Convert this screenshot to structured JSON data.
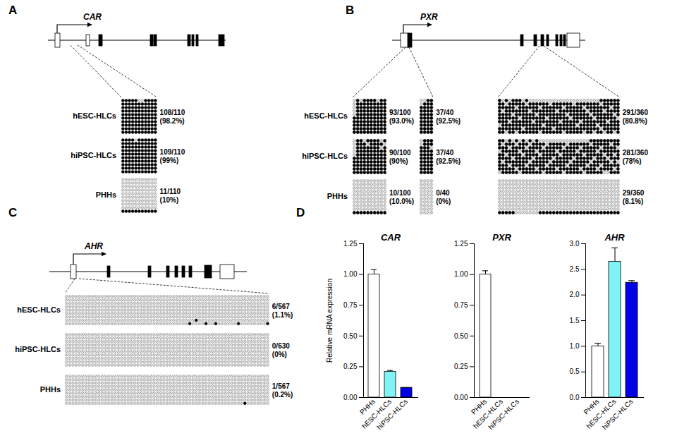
{
  "panels": [
    {
      "letter": "A",
      "gene": "CAR",
      "row_labels": [
        "hESC-HLCs",
        "hiPSC-HLCs",
        "PHHs"
      ],
      "regions": [
        {
          "cpgs": 11,
          "samples": [
            {
              "unmethylated_by_row": [
                [
                  5,
                  6
                ],
                [],
                [],
                [],
                [],
                [],
                [],
                [],
                [],
                []
              ],
              "count_label": "108/110",
              "percent_label": "(98.2%)"
            },
            {
              "unmethylated_by_row": [
                [
                  4
                ],
                [],
                [],
                [],
                [],
                [],
                [],
                [],
                [],
                []
              ],
              "count_label": "109/110",
              "percent_label": "(99%)"
            },
            {
              "methylated_by_row": [
                [],
                [],
                [],
                [],
                [],
                [],
                [],
                [],
                [],
                [
                  0,
                  1,
                  2,
                  3,
                  4,
                  5,
                  6,
                  7,
                  8,
                  9,
                  10
                ]
              ],
              "count_label": "11/110",
              "percent_label": "(10%)"
            }
          ]
        }
      ]
    },
    {
      "letter": "B",
      "gene": "PXR",
      "row_labels": [
        "hESC-HLCs",
        "hiPSC-HLCs",
        "PHHs"
      ],
      "regions": [
        {
          "cpgs": 10,
          "samples": [
            {
              "unmethylated_by_row": [
                [
                  0,
                  2,
                  7
                ],
                [
                  0
                ],
                [
                  0
                ],
                [
                  0
                ],
                [
                  0
                ],
                [],
                [],
                [],
                [],
                []
              ],
              "count_label": "93/100",
              "percent_label": "(93.0%)"
            },
            {
              "unmethylated_by_row": [
                [
                  0,
                  3,
                  8
                ],
                [
                  0,
                  4,
                  9
                ],
                [
                  0,
                  8
                ],
                [
                  0
                ],
                [
                  0
                ],
                [],
                [],
                [],
                [],
                []
              ],
              "count_label": "90/100",
              "percent_label": "(90%)"
            },
            {
              "methylated_by_row": [
                [],
                [],
                [],
                [],
                [],
                [],
                [],
                [],
                [],
                [
                  0,
                  1,
                  2,
                  3,
                  4,
                  5,
                  6,
                  7,
                  8,
                  9
                ]
              ],
              "count_label": "10/100",
              "percent_label": "(10.0%)"
            }
          ]
        },
        {
          "cpgs": 4,
          "samples": [
            {
              "unmethylated_by_row": [
                [
                  0,
                  1
                ],
                [
                  0
                ],
                [],
                [],
                [],
                [],
                [],
                [],
                [],
                []
              ],
              "count_label": "37/40",
              "percent_label": "(92.5%)"
            },
            {
              "unmethylated_by_row": [
                [
                  0
                ],
                [
                  0
                ],
                [
                  3
                ],
                [],
                [],
                [],
                [],
                [],
                [],
                []
              ],
              "count_label": "37/40",
              "percent_label": "(92.5%)"
            },
            {
              "methylated_by_row": [
                [],
                [],
                [],
                [],
                [],
                [],
                [],
                [],
                [],
                []
              ],
              "count_label": "0/40",
              "percent_label": "(0%)"
            }
          ]
        },
        {
          "cpgs": 36,
          "samples": [
            {
              "unmethylated_by_row": [
                [
                  1,
                  3,
                  7,
                  9,
                  10,
                  11,
                  12,
                  13,
                  14,
                  15,
                  16,
                  17,
                  18,
                  19,
                  20,
                  21,
                  22,
                  23,
                  24,
                  25,
                  26,
                  27,
                  28,
                  29
                ],
                [
                  2,
                  8,
                  15,
                  22,
                  30
                ],
                [
                  5,
                  12,
                  19,
                  25,
                  33
                ],
                [
                  1,
                  9,
                  17,
                  26,
                  31
                ],
                [
                  4,
                  11,
                  20,
                  27,
                  34
                ],
                [
                  6,
                  14,
                  21,
                  28,
                  35
                ],
                [
                  3,
                  10,
                  18,
                  24,
                  32
                ],
                [
                  0,
                  13,
                  23,
                  29
                ],
                [
                  7,
                  16,
                  30
                ],
                [
                  2,
                  5,
                  12,
                  19,
                  25,
                  28,
                  31,
                  34
                ]
              ],
              "count_label": "291/360",
              "percent_label": "(80.8%)"
            },
            {
              "unmethylated_by_row": [
                [
                  2,
                  4,
                  6,
                  8,
                  10,
                  12,
                  13,
                  14,
                  15,
                  16,
                  17,
                  18,
                  19,
                  20,
                  21,
                  22,
                  23,
                  24,
                  25,
                  26
                ],
                [
                  1,
                  5,
                  9,
                  14,
                  20,
                  27,
                  33
                ],
                [
                  3,
                  8,
                  13,
                  19,
                  24,
                  30,
                  35
                ],
                [
                  0,
                  6,
                  11,
                  17,
                  23,
                  29
                ],
                [
                  2,
                  7,
                  12,
                  18,
                  25,
                  31,
                  34
                ],
                [
                  4,
                  10,
                  16,
                  22,
                  28,
                  32
                ],
                [
                  1,
                  9,
                  15,
                  21,
                  27,
                  33,
                  35
                ],
                [
                  3,
                  8,
                  14,
                  20,
                  26,
                  30
                ],
                [
                  5,
                  11,
                  17,
                  24,
                  29,
                  34
                ],
                [
                  0,
                  6,
                  13,
                  19,
                  25,
                  31,
                  32
                ]
              ],
              "count_label": "281/360",
              "percent_label": "(78%)"
            },
            {
              "methylated_by_row": [
                [],
                [],
                [],
                [],
                [],
                [],
                [],
                [],
                [],
                [
                  0,
                  1,
                  2,
                  3,
                  4,
                  12,
                  13,
                  14,
                  15,
                  16,
                  17,
                  18,
                  19,
                  20,
                  21,
                  22,
                  23,
                  24,
                  25,
                  26,
                  27,
                  28,
                  29,
                  30,
                  31,
                  32,
                  33,
                  34,
                  35
                ]
              ],
              "count_label": "29/360",
              "percent_label": "(8.1%)"
            }
          ]
        }
      ]
    },
    {
      "letter": "C",
      "gene": "AHR",
      "row_labels": [
        "hESC-HLCs",
        "hiPSC-HLCs",
        "PHHs"
      ],
      "regions": [
        {
          "cpgs": 63,
          "samples": [
            {
              "methylated_by_row": [
                [],
                [],
                [],
                [],
                [],
                [],
                [],
                [
                  40
                ],
                [
                  38,
                  43,
                  46,
                  53,
                  62
                ]
              ],
              "count_label": "6/567",
              "percent_label": "(1.1%)"
            },
            {
              "methylated_by_row": [
                [],
                [],
                [],
                [],
                [],
                [],
                [],
                [],
                [],
                []
              ],
              "count_label": "0/630",
              "percent_label": "(0%)"
            },
            {
              "methylated_by_row": [
                [],
                [],
                [],
                [],
                [],
                [],
                [],
                [],
                [
                  55
                ]
              ],
              "count_label": "1/567",
              "percent_label": "(0.2%)"
            }
          ]
        }
      ]
    }
  ],
  "chart_panel": {
    "letter": "D"
  },
  "chart_data": [
    {
      "type": "bar",
      "title": "CAR",
      "ylabel": "Relative mRNA expression",
      "categories": [
        "PHHs",
        "hESC-HLCs",
        "hiPSC-HLCs"
      ],
      "values": [
        1.0,
        0.21,
        0.08
      ],
      "errors": [
        0.04,
        0.01,
        0.0
      ],
      "colors": [
        "#ffffff",
        "#80f4f4",
        "#0000e6"
      ],
      "ylim": [
        0,
        1.25
      ],
      "yticks": [
        {
          "value": 0,
          "label": "0.00"
        },
        {
          "value": 0.25,
          "label": "0.25"
        },
        {
          "value": 0.5,
          "label": "0.50"
        },
        {
          "value": 0.75,
          "label": "0.75"
        },
        {
          "value": 1,
          "label": "1.00"
        },
        {
          "value": 1.25,
          "label": "1.25"
        }
      ]
    },
    {
      "type": "bar",
      "title": "PXR",
      "categories": [
        "PHHs",
        "hESC-HLCs",
        "hiPSC-HLCs"
      ],
      "values": [
        1.0,
        0,
        0
      ],
      "errors": [
        0.03,
        0,
        0
      ],
      "colors": [
        "#ffffff",
        "#80f4f4",
        "#0000e6"
      ],
      "ylim": [
        0,
        1.25
      ],
      "yticks": [
        {
          "value": 0,
          "label": "0.00"
        },
        {
          "value": 0.25,
          "label": "0.25"
        },
        {
          "value": 0.5,
          "label": "0.50"
        },
        {
          "value": 0.75,
          "label": "0.75"
        },
        {
          "value": 1,
          "label": "1.00"
        },
        {
          "value": 1.25,
          "label": "1.25"
        }
      ]
    },
    {
      "type": "bar",
      "title": "AHR",
      "categories": [
        "PHHs",
        "hESC-HLCs",
        "hiPSC-HLCs"
      ],
      "values": [
        1.0,
        2.65,
        2.24
      ],
      "errors": [
        0.06,
        0.27,
        0.04
      ],
      "colors": [
        "#ffffff",
        "#80f4f4",
        "#0000e6"
      ],
      "ylim": [
        0,
        3
      ],
      "yticks": [
        {
          "value": 0,
          "label": "0.0"
        },
        {
          "value": 0.5,
          "label": "0.5"
        },
        {
          "value": 1,
          "label": "1.0"
        },
        {
          "value": 1.5,
          "label": "1.5"
        },
        {
          "value": 2,
          "label": "2.0"
        },
        {
          "value": 2.5,
          "label": "2.5"
        },
        {
          "value": 3,
          "label": "3.0"
        }
      ]
    }
  ]
}
